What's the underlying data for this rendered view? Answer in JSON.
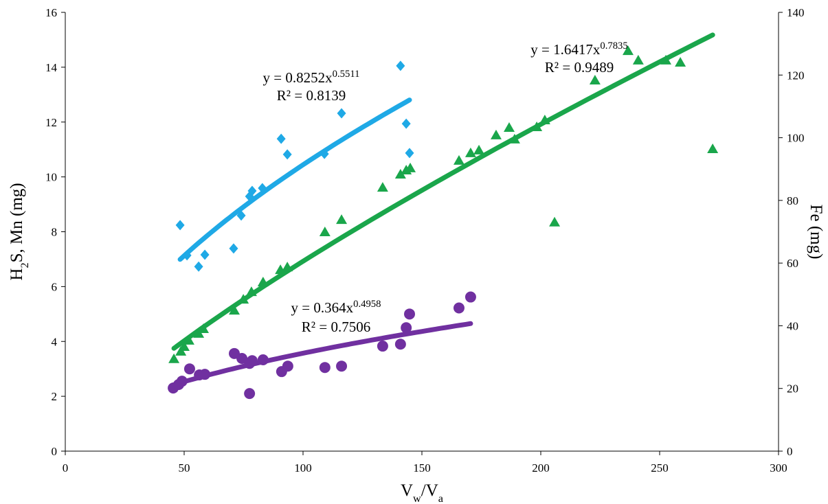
{
  "chart_data": {
    "type": "scatter",
    "xlabel": [
      "V",
      "w",
      "/V",
      "a"
    ],
    "ylabel": [
      "H",
      "2",
      "S, Mn (mg)"
    ],
    "y2label": "Fe (mg)",
    "xlim": [
      0,
      300
    ],
    "xticks": [
      0,
      50,
      100,
      150,
      200,
      250,
      300
    ],
    "ylim": [
      0,
      16
    ],
    "yticks": [
      0,
      2,
      4,
      6,
      8,
      10,
      12,
      14,
      16
    ],
    "y2lim": [
      0,
      140
    ],
    "y2ticks": [
      0,
      20,
      40,
      60,
      80,
      100,
      120,
      140
    ],
    "grid": false,
    "series": [
      {
        "color": "#1fa9e6",
        "marker": "diamond",
        "axis": "y",
        "x": [
          48.3,
          51.2,
          58.7,
          56.1,
          70.8,
          74.0,
          77.5,
          78.6,
          82.9,
          90.8,
          93.4,
          109.0,
          116.2,
          141.0,
          143.4,
          144.8
        ],
        "values": [
          8.24,
          7.14,
          7.16,
          6.73,
          7.39,
          8.59,
          9.29,
          9.49,
          9.59,
          11.39,
          10.82,
          10.84,
          12.32,
          14.05,
          11.94,
          10.87
        ],
        "trendline": {
          "equation": [
            "y = ",
            0.8252,
            "x",
            0.5511
          ],
          "r_squared": [
            "R² = ",
            0.8139
          ]
        }
      },
      {
        "color": "#1aa64b",
        "marker": "triangle",
        "axis": "y2",
        "x": [
          45.7,
          48.6,
          50.0,
          52.0,
          56.1,
          58.1,
          71.1,
          74.9,
          78.3,
          83.2,
          90.5,
          93.4,
          109.2,
          116.2,
          133.5,
          141.0,
          143.4,
          145.1,
          165.6,
          170.5,
          174.0,
          181.2,
          186.7,
          189.0,
          198.3,
          201.7,
          205.8,
          222.8,
          236.7,
          241.0,
          252.6,
          258.7,
          272.3
        ],
        "values": [
          29.4,
          31.8,
          33.3,
          35.3,
          37.5,
          39.0,
          44.9,
          48.4,
          50.8,
          53.9,
          57.8,
          58.7,
          69.9,
          73.8,
          84.1,
          88.3,
          89.6,
          90.3,
          92.7,
          95.1,
          96.0,
          100.8,
          103.2,
          99.5,
          103.4,
          105.6,
          73.0,
          118.3,
          127.7,
          124.7,
          124.7,
          124.0,
          96.4
        ],
        "trendline": {
          "equation": [
            "y = ",
            1.6417,
            "x",
            0.7835
          ],
          "r_squared": [
            "R² = ",
            0.9489
          ]
        }
      },
      {
        "color": "#7030a0",
        "marker": "circle",
        "axis": "y",
        "x": [
          45.4,
          47.7,
          49.1,
          52.3,
          56.4,
          58.7,
          71.1,
          74.3,
          77.5,
          77.5,
          78.6,
          83.2,
          91.0,
          93.6,
          109.2,
          116.2,
          133.5,
          141.0,
          143.4,
          144.8,
          165.6,
          170.5
        ],
        "values": [
          2.3,
          2.43,
          2.55,
          3.0,
          2.78,
          2.8,
          3.56,
          3.38,
          3.2,
          2.1,
          3.3,
          3.33,
          2.9,
          3.1,
          3.05,
          3.1,
          3.83,
          3.9,
          4.5,
          5.0,
          5.22,
          5.62
        ],
        "trendline": {
          "equation": [
            "y = ",
            0.364,
            "x",
            0.4958
          ],
          "r_squared": [
            "R² = ",
            0.7506
          ]
        }
      }
    ]
  }
}
